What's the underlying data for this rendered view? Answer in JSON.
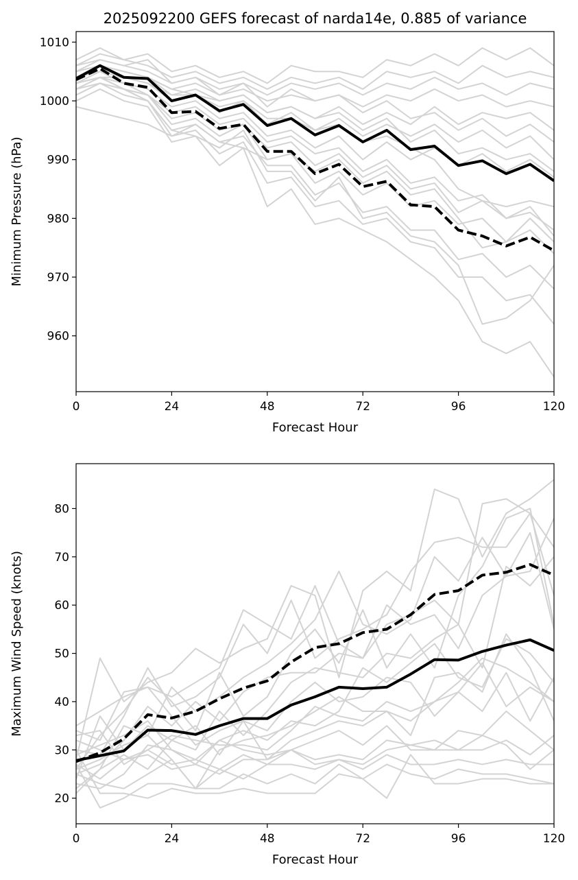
{
  "chart_data": [
    {
      "type": "line",
      "title": "2025092200 GEFS forecast of narda14e, 0.885 of variance",
      "xlabel": "Forecast Hour",
      "ylabel": "Minimum Pressure (hPa)",
      "xlim": [
        0,
        120
      ],
      "ylim": [
        950.5,
        1011.8
      ],
      "xticks": [
        0,
        24,
        48,
        72,
        96,
        120
      ],
      "yticks": [
        960,
        970,
        980,
        990,
        1000,
        1010
      ],
      "x": [
        0,
        6,
        12,
        18,
        24,
        30,
        36,
        42,
        48,
        54,
        60,
        66,
        72,
        78,
        84,
        90,
        96,
        102,
        108,
        114,
        120
      ],
      "grid": false,
      "colors": {
        "ensemble": "#d3d3d3",
        "highlight": "#000000"
      },
      "series": [
        {
          "style": "solid",
          "values": [
            1003.8,
            1006.0,
            1004.0,
            1003.8,
            1000.0,
            1001.0,
            998.3,
            999.4,
            995.8,
            997.0,
            994.2,
            995.8,
            993.0,
            995.0,
            991.7,
            992.3,
            989.0,
            989.8,
            987.6,
            989.2,
            986.4
          ]
        },
        {
          "style": "dashed",
          "values": [
            1003.6,
            1005.5,
            1003.0,
            1002.3,
            998.0,
            998.2,
            995.3,
            996.0,
            991.4,
            991.4,
            987.6,
            989.2,
            985.4,
            986.3,
            982.3,
            982.0,
            978.0,
            977.0,
            975.3,
            976.8,
            974.5
          ]
        },
        {
          "style": "ensemble",
          "values": [
            1007,
            1009,
            1007,
            1008,
            1005,
            1006,
            1004,
            1005,
            1003,
            1006,
            1005,
            1005,
            1004,
            1007,
            1006,
            1008,
            1006,
            1009,
            1007,
            1009,
            1006
          ]
        },
        {
          "style": "ensemble",
          "values": [
            1006,
            1008,
            1007,
            1006,
            1004,
            1005,
            1003,
            1004,
            1002,
            1004,
            1003,
            1004,
            1002,
            1005,
            1004,
            1005,
            1003,
            1006,
            1004,
            1005,
            1004
          ]
        },
        {
          "style": "ensemble",
          "values": [
            1005,
            1007,
            1006,
            1005,
            1003,
            1004,
            1002,
            1003,
            1001,
            1003,
            1002,
            1003,
            1001,
            1003,
            1002,
            1004,
            1002,
            1003,
            1001,
            1003,
            1002
          ]
        },
        {
          "style": "ensemble",
          "values": [
            1004,
            1006,
            1005,
            1004,
            1002,
            1003,
            1001,
            1002,
            1000,
            1001,
            1000,
            1001,
            999,
            1001,
            1000,
            1002,
            1000,
            1001,
            999,
            1000,
            999
          ]
        },
        {
          "style": "ensemble",
          "values": [
            1005,
            1006,
            1005,
            1004,
            1001,
            1002,
            1000,
            1001,
            998,
            999,
            997,
            999,
            996,
            998,
            996,
            999,
            996,
            998,
            997,
            998,
            995
          ]
        },
        {
          "style": "ensemble",
          "values": [
            1003,
            1005,
            1004,
            1003,
            1000,
            1001,
            998,
            1000,
            996,
            998,
            995,
            997,
            994,
            996,
            994,
            996,
            993,
            995,
            992,
            994,
            990
          ]
        },
        {
          "style": "ensemble",
          "values": [
            1004,
            1005,
            1003,
            1002,
            999,
            1000,
            997,
            998,
            994,
            995,
            992,
            994,
            990,
            993,
            990,
            992,
            989,
            991,
            988,
            990,
            987
          ]
        },
        {
          "style": "ensemble",
          "values": [
            1002,
            1004,
            1002,
            1001,
            997,
            998,
            995,
            996,
            992,
            993,
            989,
            991,
            987,
            989,
            985,
            986,
            981,
            983,
            980,
            982,
            977
          ]
        },
        {
          "style": "ensemble",
          "values": [
            1003,
            1004,
            1003,
            1001,
            996,
            997,
            994,
            996,
            990,
            991,
            986,
            988,
            984,
            986,
            982,
            983,
            979,
            980,
            976,
            978,
            974
          ]
        },
        {
          "style": "ensemble",
          "values": [
            1001,
            1003,
            1001,
            1000,
            995,
            996,
            993,
            994,
            989,
            989,
            984,
            986,
            981,
            982,
            978,
            978,
            973,
            974,
            970,
            972,
            968
          ]
        },
        {
          "style": "ensemble",
          "values": [
            1002,
            1004,
            1002,
            1000,
            994,
            995,
            991,
            993,
            986,
            987,
            982,
            983,
            979,
            980,
            976,
            975,
            970,
            970,
            966,
            967,
            962
          ]
        },
        {
          "style": "ensemble",
          "values": [
            1000,
            1002,
            1000,
            999,
            993,
            994,
            989,
            992,
            982,
            985,
            979,
            980,
            978,
            976,
            973,
            970,
            966,
            959,
            957,
            959,
            953
          ]
        },
        {
          "style": "ensemble",
          "values": [
            1001,
            1003,
            1002,
            1000,
            995,
            994,
            992,
            995,
            988,
            988,
            983,
            987,
            980,
            981,
            977,
            976,
            972,
            962,
            963,
            966,
            972
          ]
        },
        {
          "style": "ensemble",
          "values": [
            999,
            998,
            997,
            996,
            994,
            996,
            993,
            992,
            990,
            991,
            988,
            990,
            986,
            988,
            984,
            985,
            980,
            975,
            976,
            980,
            976
          ]
        },
        {
          "style": "ensemble",
          "values": [
            1004,
            1006,
            1005,
            1004,
            1002,
            1001,
            999,
            1000,
            997,
            997,
            995,
            996,
            993,
            994,
            992,
            990,
            985,
            983,
            982,
            983,
            982
          ]
        },
        {
          "style": "ensemble",
          "values": [
            1006,
            1007,
            1006,
            1007,
            1003,
            1004,
            1001,
            1003,
            999,
            1002,
            1000,
            1001,
            998,
            1000,
            997,
            998,
            995,
            997,
            994,
            996,
            993
          ]
        },
        {
          "style": "ensemble",
          "values": [
            1003,
            1004,
            1004,
            1003,
            1001,
            1001,
            1000,
            1001,
            998,
            999,
            997,
            998,
            995,
            997,
            993,
            995,
            991,
            992,
            990,
            991,
            988
          ]
        },
        {
          "style": "ensemble",
          "values": [
            1002,
            1003,
            1002,
            1001,
            998,
            999,
            996,
            997,
            993,
            994,
            991,
            992,
            988,
            990,
            986,
            987,
            983,
            984,
            980,
            981,
            978
          ]
        }
      ]
    },
    {
      "type": "line",
      "title": "",
      "xlabel": "Forecast Hour",
      "ylabel": "Maximum Wind Speed (knots)",
      "xlim": [
        0,
        120
      ],
      "ylim": [
        14.7,
        89.3
      ],
      "xticks": [
        0,
        24,
        48,
        72,
        96,
        120
      ],
      "yticks": [
        20,
        30,
        40,
        50,
        60,
        70,
        80
      ],
      "x": [
        0,
        6,
        12,
        18,
        24,
        30,
        36,
        42,
        48,
        54,
        60,
        66,
        72,
        78,
        84,
        90,
        96,
        102,
        108,
        114,
        120
      ],
      "grid": false,
      "colors": {
        "ensemble": "#d3d3d3",
        "highlight": "#000000"
      },
      "series": [
        {
          "style": "solid",
          "values": [
            27.8,
            28.8,
            29.8,
            34.1,
            34.0,
            33.2,
            35.0,
            36.5,
            36.5,
            39.3,
            41.0,
            43.0,
            42.7,
            43.0,
            45.7,
            48.7,
            48.6,
            50.4,
            51.7,
            52.8,
            50.6
          ]
        },
        {
          "style": "dashed",
          "values": [
            27.6,
            29.4,
            32.3,
            37.3,
            36.6,
            38.0,
            40.6,
            42.8,
            44.3,
            48.2,
            51.2,
            52.0,
            54.3,
            55.0,
            58.0,
            62.2,
            63.0,
            66.2,
            66.8,
            68.4,
            66.2
          ]
        },
        {
          "style": "ensemble",
          "values": [
            28,
            49,
            40,
            44,
            46,
            51,
            48,
            51,
            53,
            64,
            62,
            45,
            63,
            67,
            63,
            84,
            82,
            70,
            79,
            82,
            86
          ]
        },
        {
          "style": "ensemble",
          "values": [
            30,
            29,
            37,
            47,
            39,
            41,
            45,
            56,
            50,
            61,
            49,
            53,
            55,
            58,
            67,
            73,
            74,
            72,
            72,
            79,
            72
          ]
        },
        {
          "style": "ensemble",
          "values": [
            34,
            32,
            42,
            43,
            41,
            44,
            47,
            59,
            56,
            53,
            64,
            52,
            49,
            56,
            58,
            61,
            56,
            81,
            82,
            79,
            62
          ]
        },
        {
          "style": "ensemble",
          "values": [
            26,
            33,
            38,
            45,
            40,
            34,
            46,
            37,
            41,
            50,
            55,
            48,
            59,
            47,
            54,
            47,
            62,
            68,
            78,
            80,
            56
          ]
        },
        {
          "style": "ensemble",
          "values": [
            22,
            26,
            35,
            33,
            43,
            38,
            41,
            45,
            48,
            52,
            57,
            67,
            56,
            54,
            57,
            70,
            65,
            74,
            66,
            75,
            55
          ]
        },
        {
          "style": "ensemble",
          "values": [
            25,
            27,
            32,
            39,
            35,
            40,
            36,
            42,
            45,
            46,
            46,
            50,
            49,
            60,
            56,
            58,
            51,
            62,
            66,
            67,
            78
          ]
        },
        {
          "style": "ensemble",
          "values": [
            24,
            37,
            30,
            35,
            32,
            30,
            38,
            33,
            38,
            44,
            47,
            46,
            45,
            50,
            49,
            53,
            56,
            47,
            68,
            64,
            70
          ]
        },
        {
          "style": "ensemble",
          "values": [
            23,
            22,
            25,
            31,
            30,
            27,
            32,
            34,
            32,
            36,
            35,
            38,
            47,
            44,
            48,
            52,
            45,
            43,
            53,
            50,
            44
          ]
        },
        {
          "style": "ensemble",
          "values": [
            27,
            24,
            28,
            30,
            33,
            32,
            31,
            31,
            30,
            34,
            39,
            37,
            36,
            40,
            38,
            40,
            42,
            48,
            39,
            43,
            40
          ]
        },
        {
          "style": "ensemble",
          "values": [
            21,
            26,
            29,
            26,
            32,
            35,
            29,
            36,
            28,
            32,
            34,
            36,
            35,
            38,
            33,
            45,
            46,
            42,
            54,
            47,
            36
          ]
        },
        {
          "style": "ensemble",
          "values": [
            29,
            31,
            33,
            36,
            30,
            28,
            32,
            30,
            29,
            30,
            32,
            34,
            31,
            35,
            30,
            30,
            34,
            33,
            38,
            34,
            30
          ]
        },
        {
          "style": "ensemble",
          "values": [
            33,
            34,
            27,
            30,
            27,
            28,
            26,
            29,
            27,
            30,
            28,
            29,
            28,
            32,
            31,
            32,
            30,
            30,
            32,
            29,
            33
          ]
        },
        {
          "style": "ensemble",
          "values": [
            25,
            23,
            22,
            25,
            28,
            22,
            26,
            24,
            27,
            27,
            26,
            28,
            26,
            29,
            27,
            27,
            28,
            27,
            28,
            27,
            27
          ]
        },
        {
          "style": "ensemble",
          "values": [
            27,
            18,
            20,
            23,
            23,
            22,
            22,
            25,
            23,
            25,
            23,
            27,
            24,
            27,
            25,
            24,
            26,
            25,
            25,
            24,
            23
          ]
        },
        {
          "style": "ensemble",
          "values": [
            30,
            21,
            21,
            20,
            22,
            21,
            21,
            22,
            21,
            21,
            21,
            25,
            24,
            20,
            29,
            23,
            23,
            24,
            24,
            23,
            23
          ]
        },
        {
          "style": "ensemble",
          "values": [
            32,
            30,
            28,
            29,
            26,
            27,
            25,
            28,
            28,
            30,
            27,
            28,
            27,
            30,
            31,
            30,
            30,
            33,
            31,
            26,
            30
          ]
        },
        {
          "style": "ensemble",
          "values": [
            35,
            38,
            41,
            43,
            37,
            31,
            34,
            36,
            34,
            40,
            44,
            40,
            41,
            45,
            44,
            37,
            42,
            38,
            46,
            36,
            45
          ]
        },
        {
          "style": "ensemble",
          "values": [
            26,
            28,
            31,
            33,
            28,
            22,
            30,
            32,
            33,
            35,
            38,
            41,
            38,
            38,
            36,
            40,
            44,
            49,
            47,
            44,
            40
          ]
        }
      ]
    }
  ]
}
